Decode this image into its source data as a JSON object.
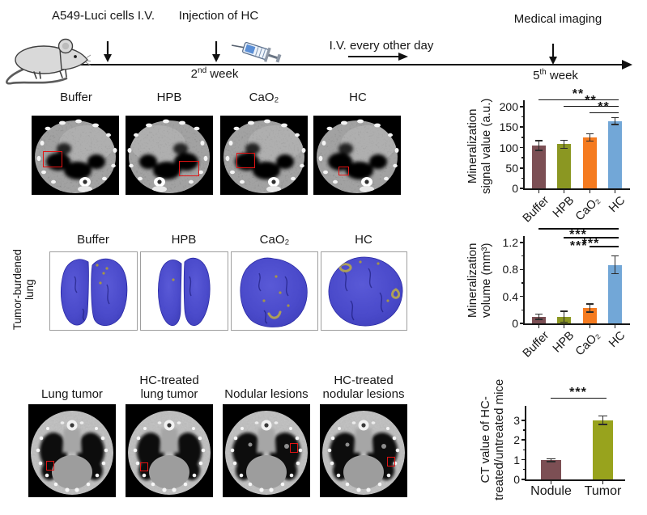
{
  "timeline": {
    "cells_label": "A549-Luci cells I.V.",
    "injection_label": "Injection of HC",
    "iv_label": "I.V. every other day",
    "imaging_label": "Medical  imaging",
    "week2": {
      "base": "2",
      "sup": "nd",
      "rest": " week"
    },
    "week5": {
      "base": "5",
      "sup": "th",
      "rest": " week"
    }
  },
  "row1": {
    "panel_labels": [
      "Buffer",
      "HPB",
      "CaO₂",
      "HC"
    ]
  },
  "row2": {
    "side_label": "Tumor-burdened\nlung",
    "panel_labels": [
      "Buffer",
      "HPB",
      "CaO₂",
      "HC"
    ]
  },
  "row3": {
    "panel_labels": [
      "Lung tumor",
      "HC-treated\nlung tumor",
      "Nodular lesions",
      "HC-treated\nnodular lesions"
    ]
  },
  "chart_data": [
    {
      "type": "bar",
      "title": "",
      "ylabel": "Mineralization\nsignal value (a.u.)",
      "categories": [
        "Buffer",
        "HPB",
        "CaO₂",
        "HC"
      ],
      "values": [
        105,
        108,
        125,
        165
      ],
      "errors": [
        12,
        10,
        9,
        8
      ],
      "colors": [
        "#7c4f54",
        "#8b9722",
        "#f57b20",
        "#72a7d7"
      ],
      "ylim": [
        0,
        200
      ],
      "yticks": [
        "0",
        "50",
        "100",
        "150",
        "200"
      ],
      "grid": false,
      "significance": [
        {
          "from": 0,
          "to": 3,
          "label": "**"
        },
        {
          "from": 1,
          "to": 3,
          "label": "**"
        },
        {
          "from": 2,
          "to": 3,
          "label": "**"
        }
      ]
    },
    {
      "type": "bar",
      "title": "",
      "ylabel": "Mineralization\nvolume (mm³)",
      "categories": [
        "Buffer",
        "HPB",
        "CaO₂",
        "HC"
      ],
      "values": [
        0.1,
        0.1,
        0.23,
        0.87
      ],
      "errors": [
        0.04,
        0.08,
        0.06,
        0.13
      ],
      "colors": [
        "#7c4f54",
        "#8b9722",
        "#f57b20",
        "#72a7d7"
      ],
      "ylim": [
        0,
        1.2
      ],
      "yticks": [
        "0",
        "0.4",
        "0.8",
        "1.2"
      ],
      "grid": false,
      "significance": [
        {
          "from": 0,
          "to": 3,
          "label": "***"
        },
        {
          "from": 1,
          "to": 3,
          "label": "***"
        },
        {
          "from": 2,
          "to": 3,
          "label": "***"
        }
      ]
    },
    {
      "type": "bar",
      "title": "",
      "ylabel": "CT value of HC-\ntreated/untreated mice",
      "categories": [
        "Nodule",
        "Tumor"
      ],
      "values": [
        0.97,
        3.0
      ],
      "errors": [
        0.08,
        0.22
      ],
      "colors": [
        "#7c4f54",
        "#98a31d"
      ],
      "ylim": [
        0,
        3.4
      ],
      "yticks": [
        "0",
        "1",
        "2",
        "3"
      ],
      "grid": false,
      "significance": [
        {
          "from": 0,
          "to": 1,
          "label": "***"
        }
      ]
    }
  ]
}
